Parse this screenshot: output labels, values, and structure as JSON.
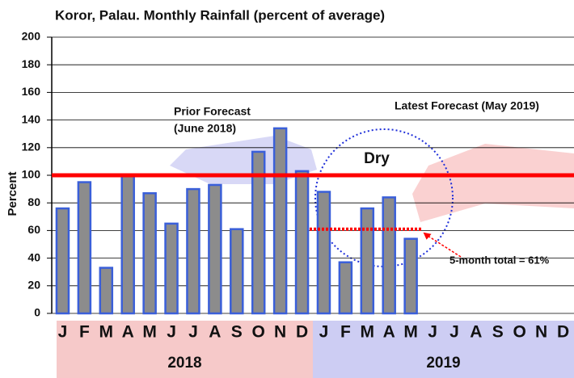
{
  "chart_data": {
    "type": "bar",
    "title": "Koror, Palau. Monthly Rainfall  (percent of average)",
    "y_label": "Percent",
    "categories": [
      "J",
      "F",
      "M",
      "A",
      "M",
      "J",
      "J",
      "A",
      "S",
      "O",
      "N",
      "D",
      "J",
      "F",
      "M",
      "A",
      "M",
      "J",
      "J",
      "A",
      "S",
      "O",
      "N",
      "D"
    ],
    "values": [
      76,
      95,
      33,
      100,
      87,
      65,
      90,
      93,
      61,
      117,
      134,
      103,
      88,
      37,
      76,
      84,
      54,
      null,
      null,
      null,
      null,
      null,
      null,
      null
    ],
    "color": "#8c8c8c",
    "edge_color": "#3a5fd9",
    "ylim": [
      0,
      200
    ],
    "yticks": [
      0,
      20,
      40,
      60,
      80,
      100,
      120,
      140,
      160,
      180,
      200
    ],
    "grid": true,
    "reference_line": {
      "value": 100,
      "color": "#ff0000"
    },
    "summary_line": {
      "value": 61,
      "label": "5-month total = 61%",
      "color": "#ff0000"
    },
    "groups": [
      {
        "label": "2018",
        "color": "#f6c9c9"
      },
      {
        "label": "2019",
        "color": "#cdcdf3"
      }
    ],
    "annotations": {
      "prior": [
        "Prior Forecast",
        "(June 2018)"
      ],
      "latest": "Latest Forecast (May 2019)",
      "dry": "Dry"
    }
  }
}
